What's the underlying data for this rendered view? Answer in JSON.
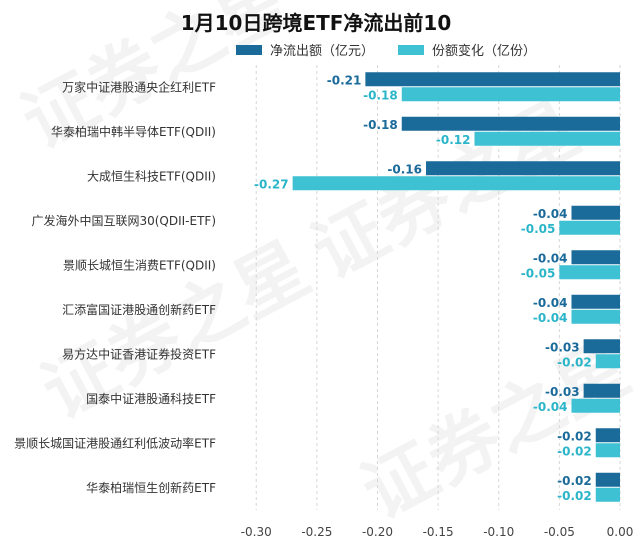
{
  "chart_data": {
    "type": "bar",
    "orientation": "horizontal",
    "title": "1月10日跨境ETF净流出前10",
    "watermark": "证券之星",
    "categories": [
      "万家中证港股通央企红利ETF",
      "华泰柏瑞中韩半导体ETF(QDII)",
      "大成恒生科技ETF(QDII)",
      "广发海外中国互联网30(QDII-ETF)",
      "景顺长城恒生消费ETF(QDII)",
      "汇添富国证港股通创新药ETF",
      "易方达中证香港证券投资ETF",
      "国泰中证港股通科技ETF",
      "景顺长城国证港股通红利低波动率ETF",
      "华泰柏瑞恒生创新药ETF"
    ],
    "series": [
      {
        "name": "净流出额（亿元）",
        "color": "#1a6a9a",
        "label_color": "#1a6a9a",
        "values": [
          -0.21,
          -0.18,
          -0.16,
          -0.04,
          -0.04,
          -0.04,
          -0.03,
          -0.03,
          -0.02,
          -0.02
        ],
        "labels": [
          "-0.21",
          "-0.18",
          "-0.16",
          "-0.04",
          "-0.04",
          "-0.04",
          "-0.03",
          "-0.03",
          "-0.02",
          "-0.02"
        ]
      },
      {
        "name": "份额变化（亿份）",
        "color": "#3ec1d3",
        "label_color": "#2bb5c9",
        "values": [
          -0.18,
          -0.12,
          -0.27,
          -0.05,
          -0.05,
          -0.04,
          -0.02,
          -0.04,
          -0.02,
          -0.02
        ],
        "labels": [
          "-0.18",
          "-0.12",
          "-0.27",
          "-0.05",
          "-0.05",
          "-0.04",
          "-0.02",
          "-0.04",
          "-0.02",
          "-0.02"
        ]
      }
    ],
    "xlim": [
      -0.32,
      0.0
    ],
    "xticks": [
      "-0.30",
      "-0.25",
      "-0.20",
      "-0.15",
      "-0.10",
      "-0.05",
      "0.00"
    ],
    "xtick_values": [
      -0.3,
      -0.25,
      -0.2,
      -0.15,
      -0.1,
      -0.05,
      0.0
    ],
    "legend_position": "top"
  }
}
